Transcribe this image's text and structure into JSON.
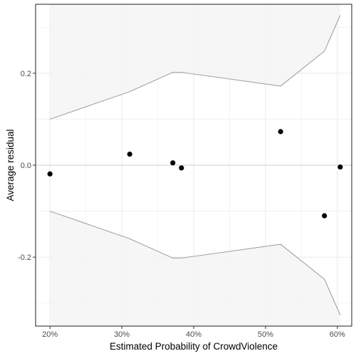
{
  "chart_data": {
    "type": "scatter",
    "xlabel": "Estimated Probability of CrowdViolence",
    "ylabel": "Average residual",
    "xlim": [
      0.18,
      0.62
    ],
    "ylim": [
      -0.35,
      0.35
    ],
    "x_ticks": [
      {
        "value": 0.2,
        "label": "20%"
      },
      {
        "value": 0.3,
        "label": "30%"
      },
      {
        "value": 0.4,
        "label": "40%"
      },
      {
        "value": 0.5,
        "label": "50%"
      },
      {
        "value": 0.6,
        "label": "60%"
      }
    ],
    "y_ticks": [
      {
        "value": -0.2,
        "label": "-0.2"
      },
      {
        "value": 0.0,
        "label": "0.0"
      },
      {
        "value": 0.2,
        "label": "0.2"
      }
    ],
    "reference_line_y": 0.0,
    "points": [
      {
        "x": 0.2,
        "y": -0.019
      },
      {
        "x": 0.311,
        "y": 0.024
      },
      {
        "x": 0.371,
        "y": 0.005
      },
      {
        "x": 0.383,
        "y": -0.006
      },
      {
        "x": 0.521,
        "y": 0.073
      },
      {
        "x": 0.582,
        "y": -0.11
      },
      {
        "x": 0.604,
        "y": -0.004
      }
    ],
    "band_x": [
      0.2,
      0.311,
      0.371,
      0.383,
      0.521,
      0.582,
      0.604
    ],
    "band_upper": [
      0.1,
      0.16,
      0.202,
      0.202,
      0.172,
      0.248,
      0.326
    ],
    "band_lower": [
      -0.1,
      -0.16,
      -0.202,
      -0.202,
      -0.172,
      -0.248,
      -0.326
    ],
    "grid": true,
    "legend": "none",
    "colors": {
      "points": "#000000",
      "band_fill": "#f5f5f5",
      "band_line": "#999999",
      "grid": "#ebebeb",
      "reference_line": "#cccccc",
      "panel_border": "#333333"
    }
  }
}
